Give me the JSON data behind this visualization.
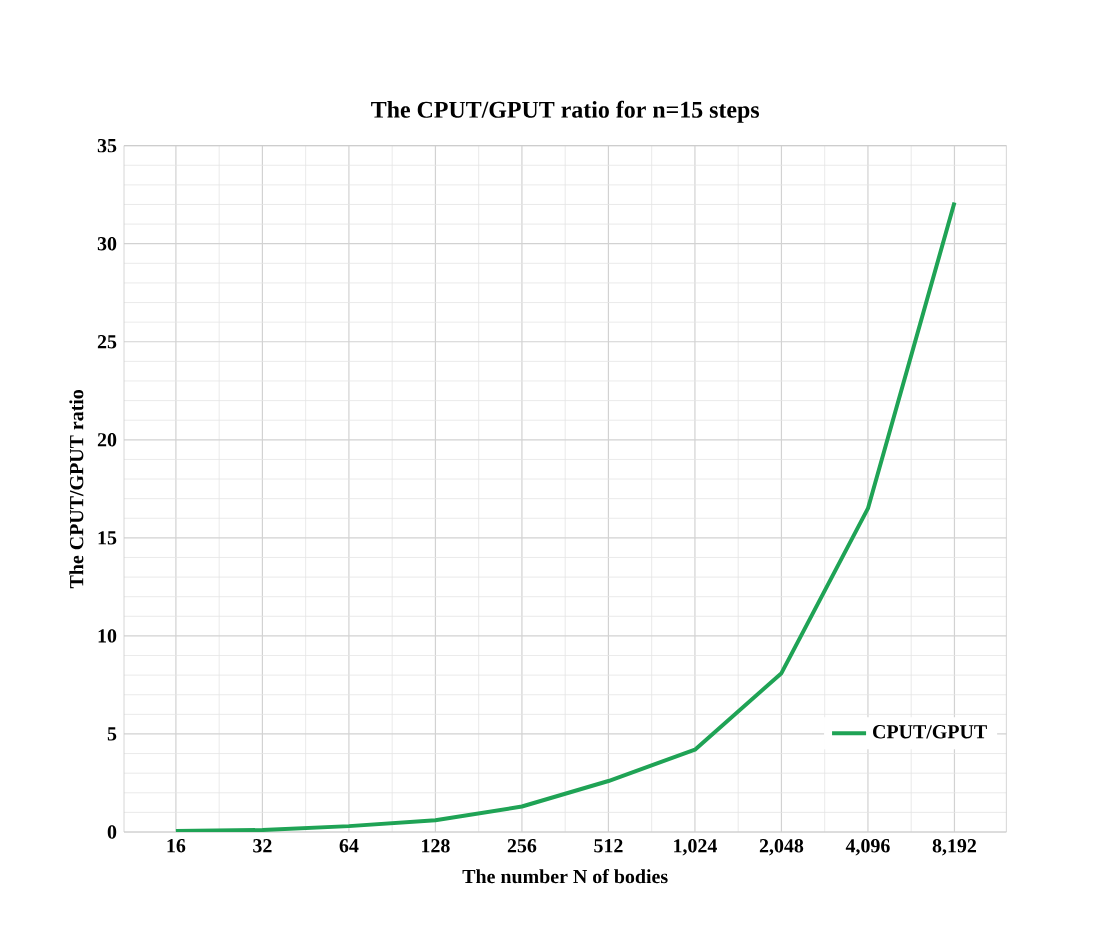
{
  "chart_data": {
    "type": "line",
    "title": "The CPUT/GPUT ratio for n=15 steps",
    "xlabel": "The number N of bodies",
    "ylabel": "The CPUT/GPUT ratio",
    "categories": [
      "16",
      "32",
      "64",
      "128",
      "256",
      "512",
      "1,024",
      "2,048",
      "4,096",
      "8,192"
    ],
    "series": [
      {
        "name": "CPUT/GPUT",
        "color": "#1fa355",
        "values": [
          0.05,
          0.1,
          0.3,
          0.6,
          1.3,
          2.6,
          4.2,
          8.1,
          16.5,
          32.1
        ]
      }
    ],
    "ylim": [
      0,
      35
    ],
    "yticks": [
      0,
      5,
      10,
      15,
      20,
      25,
      30,
      35
    ],
    "grid": true,
    "legend": "bottom right",
    "marker": "none",
    "line_style": "solid"
  }
}
